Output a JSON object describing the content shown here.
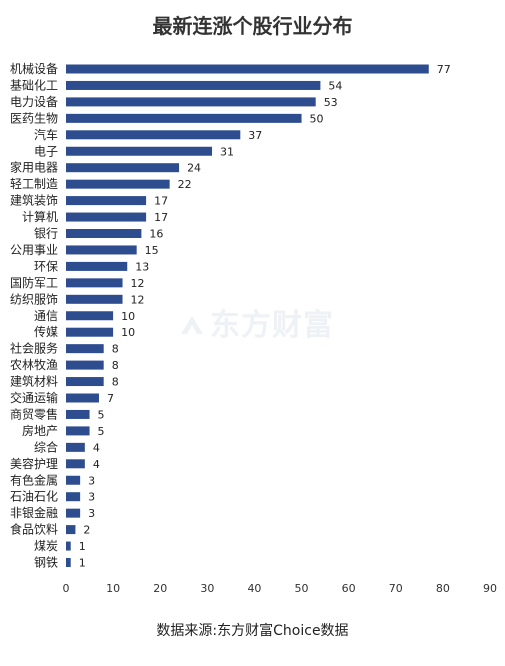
{
  "page": {
    "title": "最新连涨个股行业分布",
    "source": "数据来源:东方财富Choice数据",
    "watermark": "东方财富"
  },
  "chart_data": {
    "type": "bar",
    "orientation": "horizontal",
    "title": "最新连涨个股行业分布",
    "categories": [
      "机械设备",
      "基础化工",
      "电力设备",
      "医药生物",
      "汽车",
      "电子",
      "家用电器",
      "轻工制造",
      "建筑装饰",
      "计算机",
      "银行",
      "公用事业",
      "环保",
      "国防军工",
      "纺织服饰",
      "通信",
      "传媒",
      "社会服务",
      "农林牧渔",
      "建筑材料",
      "交通运输",
      "商贸零售",
      "房地产",
      "综合",
      "美容护理",
      "有色金属",
      "石油石化",
      "非银金融",
      "食品饮料",
      "煤炭",
      "钢铁"
    ],
    "values": [
      77,
      54,
      53,
      50,
      37,
      31,
      24,
      22,
      17,
      17,
      16,
      15,
      13,
      12,
      12,
      10,
      10,
      8,
      8,
      8,
      7,
      5,
      5,
      4,
      4,
      3,
      3,
      3,
      2,
      1,
      1
    ],
    "xlim": [
      0,
      90
    ],
    "xticks": [
      0,
      10,
      20,
      30,
      40,
      50,
      60,
      70,
      80,
      90
    ],
    "bar_color": "#2e4d8f",
    "grid": false,
    "legend": "none"
  }
}
